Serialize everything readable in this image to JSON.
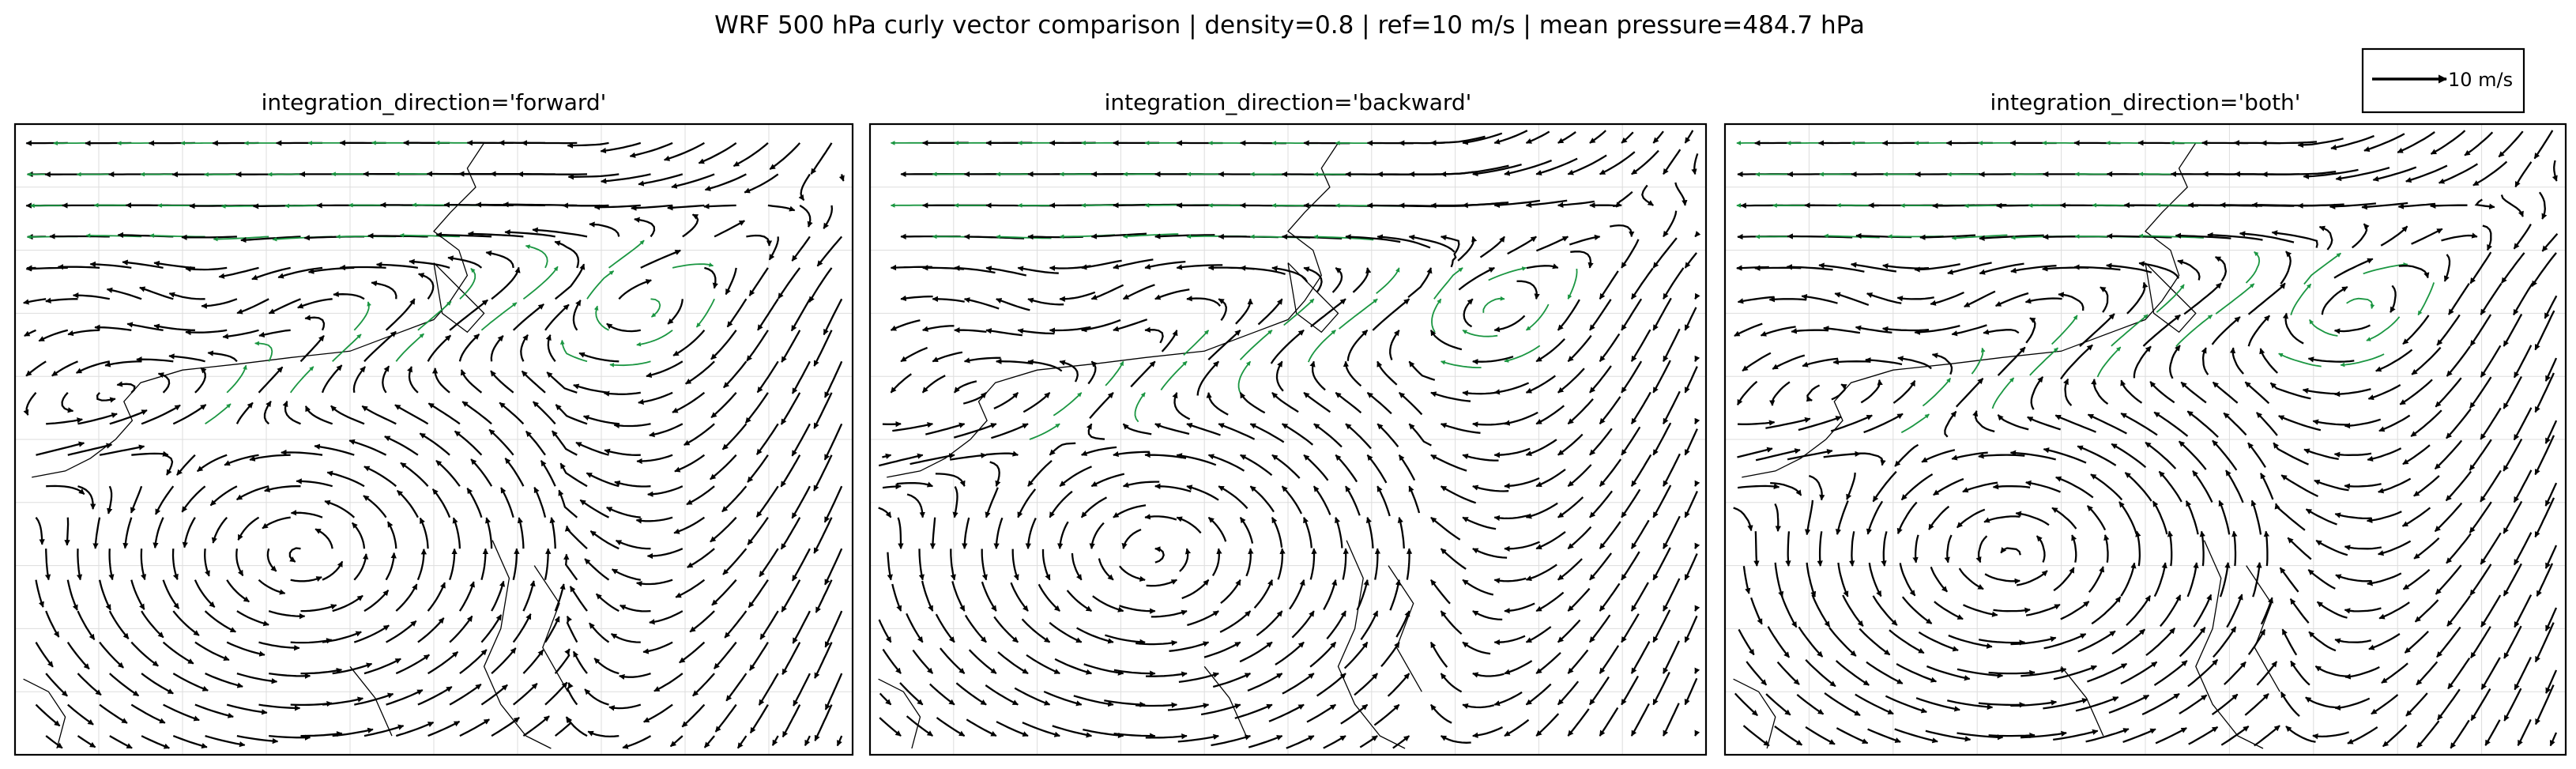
{
  "figure": {
    "title": "WRF 500 hPa curly vector comparison | density=0.8 | ref=10 m/s | mean pressure=484.7 hPa"
  },
  "key": {
    "label": "10 m/s",
    "reference_speed": 10
  },
  "colors": {
    "vectors": "#000000",
    "highlight": "#1a9641",
    "coastline": "#000000",
    "grid": "#dddddd"
  },
  "chart_data": [
    {
      "type": "vector-field",
      "title": "integration_direction='forward'",
      "integration_direction": "forward",
      "density": 0.8,
      "reference_speed": 10,
      "grid": true,
      "features": [
        "cyclonic eddy north-west",
        "anticyclonic gyre south-west",
        "cut-off cyclone north-east",
        "westerly jet (highlighted)"
      ]
    },
    {
      "type": "vector-field",
      "title": "integration_direction='backward'",
      "integration_direction": "backward",
      "density": 0.8,
      "reference_speed": 10,
      "grid": true,
      "features": [
        "cyclonic eddy north-west",
        "anticyclonic gyre south-west",
        "cut-off cyclone north-east",
        "westerly jet (highlighted)"
      ]
    },
    {
      "type": "vector-field",
      "title": "integration_direction='both'",
      "integration_direction": "both",
      "density": 0.8,
      "reference_speed": 10,
      "grid": true,
      "features": [
        "cyclonic eddy north-west",
        "anticyclonic gyre south-west",
        "cut-off cyclone north-east",
        "westerly jet (highlighted)"
      ]
    }
  ]
}
